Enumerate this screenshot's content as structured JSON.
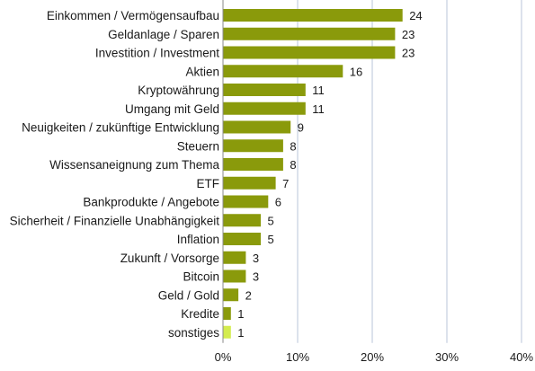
{
  "chart_data": {
    "type": "bar",
    "orientation": "horizontal",
    "title": "",
    "xlabel": "",
    "ylabel": "",
    "categories": [
      "Einkommen / Vermögensaufbau",
      "Geldanlage / Sparen",
      "Investition / Investment",
      "Aktien",
      "Kryptowährung",
      "Umgang mit Geld",
      "Neuigkeiten / zukünftige Entwicklung",
      "Steuern",
      "Wissensaneignung zum Thema",
      "ETF",
      "Bankprodukte / Angebote",
      "Sicherheit / Finanzielle Unabhängigkeit",
      "Inflation",
      "Zukunft / Vorsorge",
      "Bitcoin",
      "Geld / Gold",
      "Kredite",
      "sonstiges"
    ],
    "values": [
      24,
      23,
      23,
      16,
      11,
      11,
      9,
      8,
      8,
      7,
      6,
      5,
      5,
      3,
      3,
      2,
      1,
      1
    ],
    "value_labels": [
      "24",
      "23",
      "23",
      "16",
      "11",
      "11",
      "9",
      "8",
      "8",
      "7",
      "6",
      "5",
      "5",
      "3",
      "3",
      "2",
      "1",
      "1"
    ],
    "xlim": [
      0,
      40
    ],
    "x_ticks": [
      0,
      10,
      20,
      30,
      40
    ],
    "x_tick_labels": [
      "0%",
      "10%",
      "20%",
      "30%",
      "40%"
    ],
    "grid": "vertical",
    "legend": "none",
    "colors": {
      "bar": "#8a9a0b",
      "bar_highlight": "#d4ec4e",
      "grid": "#b8c4d8",
      "axis": "#8a8a8a",
      "text": "#1a1a1a"
    },
    "highlight_categories": [
      "sonstiges"
    ]
  }
}
